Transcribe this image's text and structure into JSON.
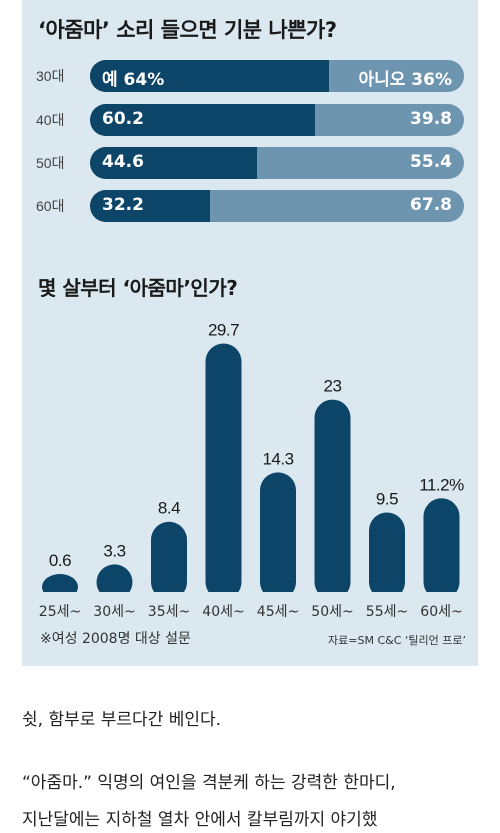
{
  "chart_data": [
    {
      "type": "bar",
      "orientation": "horizontal-stacked",
      "title": "‘아줌마’ 소리 들으면 기분 나쁜가?",
      "categories": [
        "30대",
        "40대",
        "50대",
        "60대"
      ],
      "series": [
        {
          "name": "예",
          "values": [
            64,
            60.2,
            44.6,
            32.2
          ],
          "color": "#0d4568"
        },
        {
          "name": "아니오",
          "values": [
            36,
            39.8,
            55.4,
            67.8
          ],
          "color": "#6e95b0"
        }
      ],
      "value_labels": [
        {
          "yes": "예 64%",
          "no": "아니오 36%"
        },
        {
          "yes": "60.2",
          "no": "39.8"
        },
        {
          "yes": "44.6",
          "no": "55.4"
        },
        {
          "yes": "32.2",
          "no": "67.8"
        }
      ]
    },
    {
      "type": "bar",
      "title": "몇 살부터 ‘아줌마’인가?",
      "categories": [
        "25세~",
        "30세~",
        "35세~",
        "40세~",
        "45세~",
        "50세~",
        "55세~",
        "60세~"
      ],
      "values": [
        0.6,
        3.3,
        8.4,
        29.7,
        14.3,
        23,
        9.5,
        11.2
      ],
      "value_labels": [
        "0.6",
        "3.3",
        "8.4",
        "29.7",
        "14.3",
        "23",
        "9.5",
        "11.2%"
      ],
      "ylim": [
        0,
        30
      ],
      "color": "#0d4568"
    }
  ],
  "footnote": "※여성 2008명 대상 설문",
  "source": "자료=SM C&C ‘틸리언 프로’",
  "article": {
    "line1": "쉿, 함부로 부르다간 베인다.",
    "line2": "“아줌마.” 익명의 여인을 격분케 하는 강력한 한마디,",
    "line3": "지난달에는 지하철 열차 안에서 칼부림까지 야기했"
  }
}
